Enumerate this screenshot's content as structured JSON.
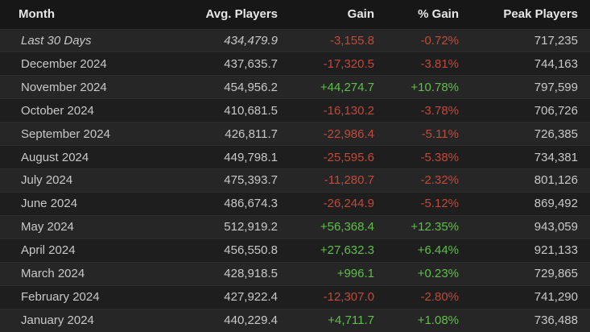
{
  "headers": {
    "month": "Month",
    "avg": "Avg. Players",
    "gain": "Gain",
    "pct": "% Gain",
    "peak": "Peak Players"
  },
  "rows": [
    {
      "month": "Last 30 Days",
      "avg": "434,479.9",
      "gain": "-3,155.8",
      "pct": "-0.72%",
      "peak": "717,235",
      "trend": "neg"
    },
    {
      "month": "December 2024",
      "avg": "437,635.7",
      "gain": "-17,320.5",
      "pct": "-3.81%",
      "peak": "744,163",
      "trend": "neg"
    },
    {
      "month": "November 2024",
      "avg": "454,956.2",
      "gain": "+44,274.7",
      "pct": "+10.78%",
      "peak": "797,599",
      "trend": "pos"
    },
    {
      "month": "October 2024",
      "avg": "410,681.5",
      "gain": "-16,130.2",
      "pct": "-3.78%",
      "peak": "706,726",
      "trend": "neg"
    },
    {
      "month": "September 2024",
      "avg": "426,811.7",
      "gain": "-22,986.4",
      "pct": "-5.11%",
      "peak": "726,385",
      "trend": "neg"
    },
    {
      "month": "August 2024",
      "avg": "449,798.1",
      "gain": "-25,595.6",
      "pct": "-5.38%",
      "peak": "734,381",
      "trend": "neg"
    },
    {
      "month": "July 2024",
      "avg": "475,393.7",
      "gain": "-11,280.7",
      "pct": "-2.32%",
      "peak": "801,126",
      "trend": "neg"
    },
    {
      "month": "June 2024",
      "avg": "486,674.3",
      "gain": "-26,244.9",
      "pct": "-5.12%",
      "peak": "869,492",
      "trend": "neg"
    },
    {
      "month": "May 2024",
      "avg": "512,919.2",
      "gain": "+56,368.4",
      "pct": "+12.35%",
      "peak": "943,059",
      "trend": "pos"
    },
    {
      "month": "April 2024",
      "avg": "456,550.8",
      "gain": "+27,632.3",
      "pct": "+6.44%",
      "peak": "921,133",
      "trend": "pos"
    },
    {
      "month": "March 2024",
      "avg": "428,918.5",
      "gain": "+996.1",
      "pct": "+0.23%",
      "peak": "729,865",
      "trend": "pos"
    },
    {
      "month": "February 2024",
      "avg": "427,922.4",
      "gain": "-12,307.0",
      "pct": "-2.80%",
      "peak": "741,290",
      "trend": "neg"
    },
    {
      "month": "January 2024",
      "avg": "440,229.4",
      "gain": "+4,711.7",
      "pct": "+1.08%",
      "peak": "736,488",
      "trend": "pos"
    }
  ],
  "colors": {
    "positive": "#5fbf4a",
    "negative": "#c0493a",
    "background": "#1b1b1b"
  }
}
